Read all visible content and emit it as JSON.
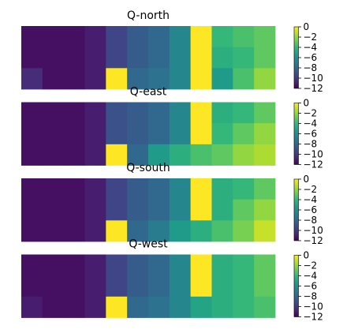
{
  "chart_data": {
    "type": "heatmap",
    "rows": 3,
    "cols": 12,
    "zlim": [
      -12,
      0
    ],
    "colormap": [
      "#440154",
      "#482878",
      "#3e4989",
      "#31688e",
      "#26828e",
      "#1f9e89",
      "#35b779",
      "#6ece58",
      "#b5de2b",
      "#fde725"
    ],
    "colorbar_ticks": [
      "0",
      "−2",
      "−4",
      "−6",
      "−8",
      "−10",
      "−12"
    ],
    "colorbar_tick_values": [
      0,
      -2,
      -4,
      -6,
      -8,
      -10,
      -12
    ],
    "panels": [
      {
        "title": "Q-north",
        "values": [
          [
            -11.5,
            -11.5,
            -11.5,
            -11,
            -9.5,
            -8.5,
            -8,
            -6.5,
            0,
            -4,
            -3.5,
            -3
          ],
          [
            -11.5,
            -11.5,
            -11.5,
            -11,
            -9.5,
            -8.5,
            -8,
            -6.5,
            0,
            -4.5,
            -4,
            -3
          ],
          [
            -10.5,
            -11.5,
            -11.5,
            -11,
            0,
            -8,
            -7.5,
            -6.5,
            0,
            -5.5,
            -3.5,
            -2
          ]
        ]
      },
      {
        "title": "Q-east",
        "values": [
          [
            -11.5,
            -11.5,
            -11.5,
            -11,
            -9,
            -8.5,
            -8,
            -6.5,
            0,
            -4.5,
            -4,
            -3
          ],
          [
            -11.5,
            -11.5,
            -11.5,
            -11,
            -9,
            -8.5,
            -8,
            -6.5,
            0,
            -4,
            -3,
            -2
          ],
          [
            -11.5,
            -11.5,
            -11.5,
            -11,
            0,
            -8,
            -5.5,
            -4.5,
            -3.5,
            -3,
            -2,
            -1.5
          ]
        ]
      },
      {
        "title": "Q-south",
        "values": [
          [
            -11.5,
            -11.5,
            -11.5,
            -11,
            -9.5,
            -8.5,
            -8,
            -6.5,
            0,
            -4.5,
            -4,
            -3
          ],
          [
            -11.5,
            -11.5,
            -11.5,
            -11,
            -9.5,
            -8.5,
            -8,
            -6.5,
            0,
            -4.5,
            -3,
            -2
          ],
          [
            -11.5,
            -11.5,
            -11.5,
            -11,
            0,
            -8,
            -7,
            -5.5,
            -4.5,
            -3.5,
            -2.5,
            -1
          ]
        ]
      },
      {
        "title": "Q-west",
        "values": [
          [
            -11.5,
            -11.5,
            -11.5,
            -11,
            -9.5,
            -8.5,
            -8,
            -6.5,
            0,
            -4.5,
            -4,
            -3
          ],
          [
            -11.5,
            -11.5,
            -11.5,
            -11,
            -9.5,
            -8.5,
            -8,
            -6.5,
            0,
            -4.5,
            -4,
            -3
          ],
          [
            -11,
            -11.5,
            -11.5,
            -11,
            0,
            -8,
            -7.5,
            -6.5,
            -5,
            -4.5,
            -4,
            -3.5
          ]
        ]
      }
    ]
  }
}
